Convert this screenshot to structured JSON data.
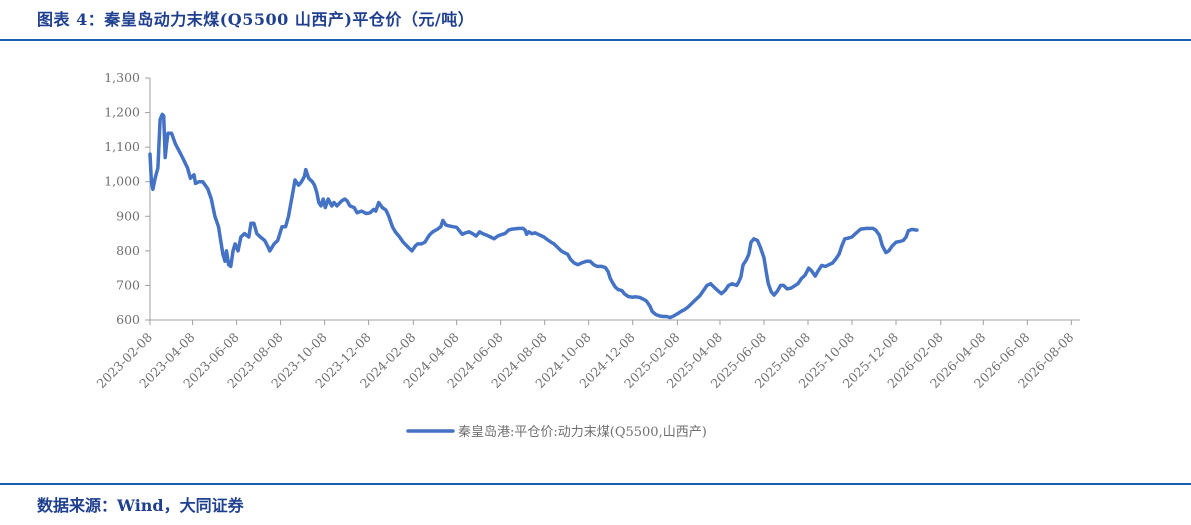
{
  "header": {
    "title": "图表 4：秦皇岛动力末煤(Q5500 山西产)平仓价（元/吨）"
  },
  "footer": {
    "source": "数据来源：Wind，大同证券"
  },
  "chart_data": {
    "type": "line",
    "title": "图表 4：秦皇岛动力末煤(Q5500 山西产)平仓价（元/吨）",
    "xlabel": "",
    "ylabel": "",
    "ylim": [
      600,
      1300
    ],
    "yticks": [
      600,
      700,
      800,
      900,
      1000,
      1100,
      1200,
      1300
    ],
    "ytick_labels": [
      "600",
      "700",
      "800",
      "900",
      "1,000",
      "1,100",
      "1,200",
      "1,300"
    ],
    "xticks": [
      "2023-02-08",
      "2023-04-08",
      "2023-06-08",
      "2023-08-08",
      "2023-10-08",
      "2023-12-08",
      "2024-02-08",
      "2024-04-08",
      "2024-06-08",
      "2024-08-08",
      "2024-10-08",
      "2024-12-08",
      "2025-02-08",
      "2025-04-08",
      "2025-06-08",
      "2025-08-08",
      "2025-10-08",
      "2025-12-08",
      "2026-02-08",
      "2026-04-08",
      "2026-06-08",
      "2026-08-08"
    ],
    "x_start": "2023-02-08",
    "x_end": "2026-08-20",
    "grid": false,
    "legend_position": "bottom-center",
    "color": "#4472c4",
    "series": [
      {
        "name": "秦皇岛港:平仓价:动力末煤(Q5500,山西产)",
        "points": [
          [
            "2023-02-08",
            1080
          ],
          [
            "2023-02-10",
            1000
          ],
          [
            "2023-02-12",
            978
          ],
          [
            "2023-02-15",
            1010
          ],
          [
            "2023-02-19",
            1040
          ],
          [
            "2023-02-22",
            1180
          ],
          [
            "2023-02-25",
            1195
          ],
          [
            "2023-02-27",
            1190
          ],
          [
            "2023-03-01",
            1070
          ],
          [
            "2023-03-03",
            1110
          ],
          [
            "2023-03-05",
            1140
          ],
          [
            "2023-03-10",
            1140
          ],
          [
            "2023-03-15",
            1110
          ],
          [
            "2023-03-20",
            1090
          ],
          [
            "2023-03-25",
            1070
          ],
          [
            "2023-04-01",
            1040
          ],
          [
            "2023-04-05",
            1010
          ],
          [
            "2023-04-10",
            1020
          ],
          [
            "2023-04-12",
            995
          ],
          [
            "2023-04-17",
            1000
          ],
          [
            "2023-04-22",
            1000
          ],
          [
            "2023-04-29",
            980
          ],
          [
            "2023-05-04",
            950
          ],
          [
            "2023-05-09",
            900
          ],
          [
            "2023-05-14",
            870
          ],
          [
            "2023-05-20",
            790
          ],
          [
            "2023-05-23",
            770
          ],
          [
            "2023-05-25",
            800
          ],
          [
            "2023-05-28",
            760
          ],
          [
            "2023-05-31",
            755
          ],
          [
            "2023-06-03",
            800
          ],
          [
            "2023-06-06",
            820
          ],
          [
            "2023-06-10",
            800
          ],
          [
            "2023-06-14",
            840
          ],
          [
            "2023-06-19",
            850
          ],
          [
            "2023-06-25",
            840
          ],
          [
            "2023-06-28",
            880
          ],
          [
            "2023-07-02",
            880
          ],
          [
            "2023-07-06",
            850
          ],
          [
            "2023-07-11",
            840
          ],
          [
            "2023-07-17",
            830
          ],
          [
            "2023-07-22",
            810
          ],
          [
            "2023-07-24",
            800
          ],
          [
            "2023-07-30",
            820
          ],
          [
            "2023-08-04",
            830
          ],
          [
            "2023-08-10",
            870
          ],
          [
            "2023-08-15",
            870
          ],
          [
            "2023-08-19",
            900
          ],
          [
            "2023-08-25",
            970
          ],
          [
            "2023-08-28",
            1005
          ],
          [
            "2023-09-02",
            990
          ],
          [
            "2023-09-06",
            1000
          ],
          [
            "2023-09-10",
            1015
          ],
          [
            "2023-09-12",
            1035
          ],
          [
            "2023-09-16",
            1010
          ],
          [
            "2023-09-21",
            1000
          ],
          [
            "2023-09-24",
            990
          ],
          [
            "2023-09-27",
            970
          ],
          [
            "2023-09-30",
            940
          ],
          [
            "2023-10-03",
            930
          ],
          [
            "2023-10-06",
            950
          ],
          [
            "2023-10-09",
            925
          ],
          [
            "2023-10-13",
            950
          ],
          [
            "2023-10-18",
            930
          ],
          [
            "2023-10-21",
            940
          ],
          [
            "2023-10-25",
            930
          ],
          [
            "2023-11-01",
            945
          ],
          [
            "2023-11-05",
            950
          ],
          [
            "2023-11-08",
            945
          ],
          [
            "2023-11-12",
            930
          ],
          [
            "2023-11-18",
            925
          ],
          [
            "2023-11-22",
            910
          ],
          [
            "2023-11-28",
            915
          ],
          [
            "2023-12-05",
            908
          ],
          [
            "2023-12-10",
            910
          ],
          [
            "2023-12-15",
            920
          ],
          [
            "2023-12-18",
            915
          ],
          [
            "2023-12-22",
            940
          ],
          [
            "2023-12-27",
            925
          ],
          [
            "2024-01-01",
            918
          ],
          [
            "2024-01-05",
            900
          ],
          [
            "2024-01-10",
            870
          ],
          [
            "2024-01-14",
            855
          ],
          [
            "2024-01-20",
            840
          ],
          [
            "2024-01-25",
            825
          ],
          [
            "2024-02-01",
            810
          ],
          [
            "2024-02-06",
            800
          ],
          [
            "2024-02-11",
            815
          ],
          [
            "2024-02-14",
            820
          ],
          [
            "2024-02-19",
            820
          ],
          [
            "2024-02-24",
            825
          ],
          [
            "2024-03-01",
            845
          ],
          [
            "2024-03-06",
            855
          ],
          [
            "2024-03-12",
            862
          ],
          [
            "2024-03-17",
            870
          ],
          [
            "2024-03-20",
            888
          ],
          [
            "2024-03-24",
            875
          ],
          [
            "2024-03-29",
            872
          ],
          [
            "2024-04-03",
            870
          ],
          [
            "2024-04-08",
            868
          ],
          [
            "2024-04-13",
            855
          ],
          [
            "2024-04-16",
            848
          ],
          [
            "2024-04-20",
            852
          ],
          [
            "2024-04-25",
            855
          ],
          [
            "2024-04-30",
            850
          ],
          [
            "2024-05-05",
            843
          ],
          [
            "2024-05-10",
            855
          ],
          [
            "2024-05-14",
            850
          ],
          [
            "2024-05-20",
            845
          ],
          [
            "2024-05-25",
            840
          ],
          [
            "2024-05-30",
            835
          ],
          [
            "2024-06-04",
            843
          ],
          [
            "2024-06-09",
            847
          ],
          [
            "2024-06-14",
            850
          ],
          [
            "2024-06-19",
            860
          ],
          [
            "2024-06-24",
            863
          ],
          [
            "2024-07-04",
            865
          ],
          [
            "2024-07-09",
            865
          ],
          [
            "2024-07-12",
            860
          ],
          [
            "2024-07-14",
            848
          ],
          [
            "2024-07-17",
            855
          ],
          [
            "2024-07-21",
            850
          ],
          [
            "2024-07-26",
            852
          ],
          [
            "2024-08-02",
            845
          ],
          [
            "2024-08-07",
            840
          ],
          [
            "2024-08-12",
            832
          ],
          [
            "2024-08-17",
            825
          ],
          [
            "2024-08-21",
            820
          ],
          [
            "2024-08-26",
            810
          ],
          [
            "2024-08-31",
            800
          ],
          [
            "2024-09-04",
            795
          ],
          [
            "2024-09-09",
            790
          ],
          [
            "2024-09-13",
            775
          ],
          [
            "2024-09-18",
            765
          ],
          [
            "2024-09-23",
            760
          ],
          [
            "2024-09-28",
            765
          ],
          [
            "2024-10-05",
            770
          ],
          [
            "2024-10-10",
            770
          ],
          [
            "2024-10-15",
            760
          ],
          [
            "2024-10-20",
            755
          ],
          [
            "2024-10-26",
            755
          ],
          [
            "2024-10-31",
            752
          ],
          [
            "2024-11-04",
            740
          ],
          [
            "2024-11-07",
            720
          ],
          [
            "2024-11-11",
            705
          ],
          [
            "2024-11-14",
            695
          ],
          [
            "2024-11-18",
            688
          ],
          [
            "2024-11-23",
            685
          ],
          [
            "2024-11-27",
            675
          ],
          [
            "2024-12-02",
            668
          ],
          [
            "2024-12-07",
            666
          ],
          [
            "2024-12-12",
            667
          ],
          [
            "2024-12-18",
            665
          ],
          [
            "2024-12-23",
            660
          ],
          [
            "2024-12-27",
            655
          ],
          [
            "2025-01-01",
            640
          ],
          [
            "2025-01-04",
            625
          ],
          [
            "2025-01-09",
            616
          ],
          [
            "2025-01-14",
            612
          ],
          [
            "2025-01-19",
            610
          ],
          [
            "2025-01-24",
            610
          ],
          [
            "2025-01-29",
            607
          ],
          [
            "2025-02-03",
            612
          ],
          [
            "2025-02-08",
            618
          ],
          [
            "2025-02-13",
            625
          ],
          [
            "2025-02-18",
            630
          ],
          [
            "2025-02-23",
            638
          ],
          [
            "2025-02-28",
            648
          ],
          [
            "2025-03-05",
            658
          ],
          [
            "2025-03-11",
            670
          ],
          [
            "2025-03-16",
            685
          ],
          [
            "2025-03-21",
            700
          ],
          [
            "2025-03-26",
            705
          ],
          [
            "2025-03-31",
            695
          ],
          [
            "2025-04-05",
            685
          ],
          [
            "2025-04-10",
            676
          ],
          [
            "2025-04-15",
            685
          ],
          [
            "2025-04-20",
            700
          ],
          [
            "2025-04-25",
            705
          ],
          [
            "2025-05-01",
            700
          ],
          [
            "2025-05-04",
            710
          ],
          [
            "2025-05-07",
            725
          ],
          [
            "2025-05-10",
            760
          ],
          [
            "2025-05-14",
            772
          ],
          [
            "2025-05-18",
            790
          ],
          [
            "2025-05-21",
            825
          ],
          [
            "2025-05-25",
            835
          ],
          [
            "2025-05-30",
            830
          ],
          [
            "2025-06-03",
            810
          ],
          [
            "2025-06-08",
            780
          ],
          [
            "2025-06-11",
            740
          ],
          [
            "2025-06-14",
            705
          ],
          [
            "2025-06-18",
            682
          ],
          [
            "2025-06-22",
            672
          ],
          [
            "2025-06-27",
            685
          ],
          [
            "2025-07-01",
            700
          ],
          [
            "2025-07-05",
            700
          ],
          [
            "2025-07-10",
            690
          ],
          [
            "2025-07-15",
            692
          ],
          [
            "2025-07-20",
            698
          ],
          [
            "2025-07-25",
            705
          ],
          [
            "2025-07-30",
            720
          ],
          [
            "2025-08-04",
            730
          ],
          [
            "2025-08-09",
            750
          ],
          [
            "2025-08-13",
            742
          ],
          [
            "2025-08-18",
            727
          ],
          [
            "2025-08-22",
            742
          ],
          [
            "2025-08-27",
            758
          ],
          [
            "2025-09-01",
            755
          ],
          [
            "2025-09-06",
            760
          ],
          [
            "2025-09-11",
            765
          ],
          [
            "2025-09-15",
            775
          ],
          [
            "2025-09-20",
            790
          ],
          [
            "2025-09-24",
            815
          ],
          [
            "2025-09-28",
            835
          ],
          [
            "2025-10-03",
            837
          ],
          [
            "2025-10-08",
            840
          ],
          [
            "2025-10-14",
            852
          ],
          [
            "2025-10-20",
            863
          ],
          [
            "2025-10-28",
            865
          ],
          [
            "2025-11-06",
            865
          ],
          [
            "2025-11-10",
            860
          ],
          [
            "2025-11-15",
            845
          ],
          [
            "2025-11-19",
            815
          ],
          [
            "2025-11-24",
            795
          ],
          [
            "2025-11-28",
            800
          ],
          [
            "2025-12-03",
            815
          ],
          [
            "2025-12-08",
            825
          ],
          [
            "2025-12-13",
            827
          ],
          [
            "2025-12-18",
            830
          ],
          [
            "2025-12-22",
            840
          ],
          [
            "2025-12-25",
            858
          ],
          [
            "2025-12-30",
            862
          ],
          [
            "2026-01-06",
            860
          ]
        ]
      }
    ]
  }
}
